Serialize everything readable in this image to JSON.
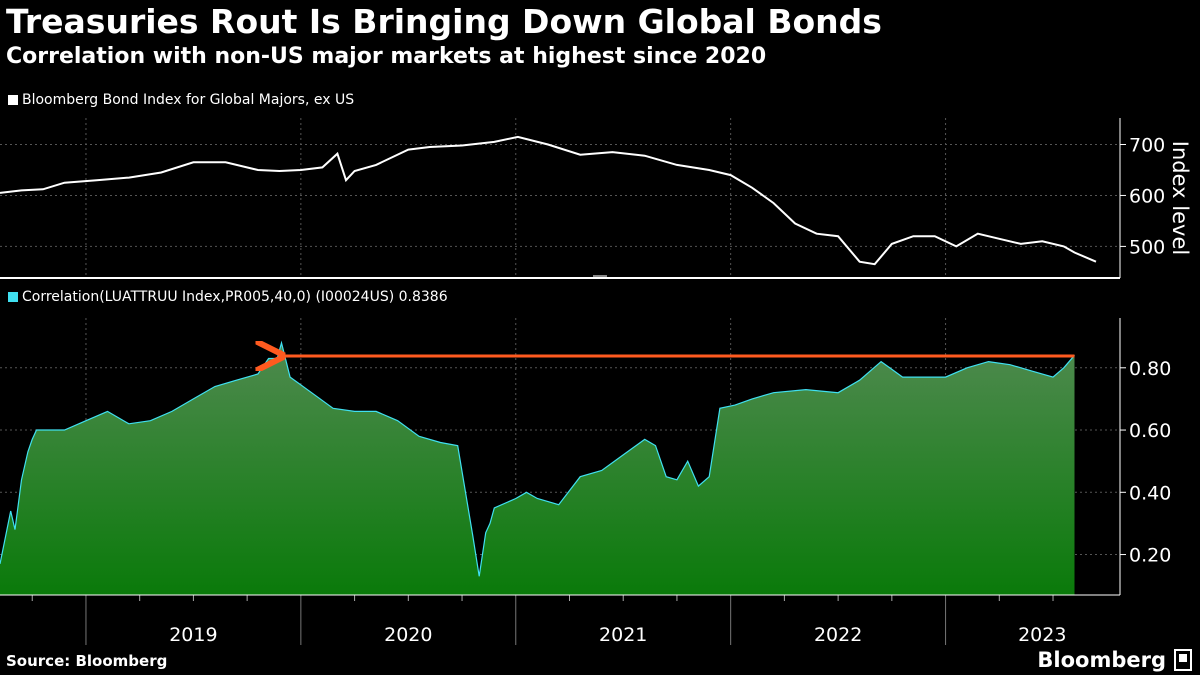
{
  "header": {
    "title": "Treasuries Rout Is Bringing Down Global Bonds",
    "subtitle": "Correlation with non-US major markets at highest since 2020"
  },
  "footer": {
    "source": "Source: Bloomberg",
    "brand": "Bloomberg"
  },
  "colors": {
    "background": "#000000",
    "index_line": "#ffffff",
    "correlation_line": "#40e0f0",
    "area_top": "#4f8a4f",
    "area_bottom": "#0a7a0a",
    "arrow": "#ff5a1f"
  },
  "chart_data": [
    {
      "type": "line",
      "legend": "Bloomberg Bond Index for Global Majors, ex US",
      "ylabel": "Index level",
      "yticks": [
        500,
        600,
        700
      ],
      "ylim": [
        438,
        752
      ],
      "xlim": [
        2018.55,
        2023.65
      ],
      "x_tick_labels": [
        "2019",
        "2020",
        "2021",
        "2022",
        "2023"
      ],
      "series": [
        {
          "x": [
            2018.55,
            2018.65,
            2018.75,
            2018.85,
            2019.0,
            2019.15,
            2019.3,
            2019.45,
            2019.6,
            2019.75,
            2019.85,
            2019.95,
            2020.05,
            2020.12,
            2020.16,
            2020.2,
            2020.3,
            2020.45,
            2020.55,
            2020.7,
            2020.85,
            2020.96,
            2021.1,
            2021.25,
            2021.4,
            2021.55,
            2021.7,
            2021.85,
            2021.95,
            2022.05,
            2022.15,
            2022.25,
            2022.35,
            2022.45,
            2022.55,
            2022.62,
            2022.7,
            2022.8,
            2022.9,
            2023.0,
            2023.1,
            2023.2,
            2023.3,
            2023.4,
            2023.5,
            2023.55,
            2023.65
          ],
          "y": [
            605,
            610,
            612,
            625,
            630,
            635,
            645,
            665,
            665,
            650,
            648,
            650,
            655,
            682,
            630,
            648,
            660,
            690,
            695,
            698,
            705,
            715,
            700,
            680,
            685,
            678,
            660,
            650,
            640,
            615,
            585,
            545,
            525,
            520,
            470,
            465,
            505,
            520,
            520,
            500,
            525,
            515,
            505,
            510,
            500,
            488,
            470
          ]
        }
      ]
    },
    {
      "type": "area",
      "legend": "Correlation(LUATTRUU Index,PR005,40,0) (I00024US) 0.8386",
      "yticks": [
        0.2,
        0.4,
        0.6,
        0.8
      ],
      "ylim": [
        0.07,
        0.96
      ],
      "xlim": [
        2018.55,
        2023.65
      ],
      "x_tick_labels": [
        "2019",
        "2020",
        "2021",
        "2022",
        "2023"
      ],
      "arrow": {
        "from_x": 2023.55,
        "to_x": 2019.85,
        "y": 0.838
      },
      "series": [
        {
          "x": [
            2018.55,
            2018.6,
            2018.62,
            2018.65,
            2018.68,
            2018.7,
            2018.72,
            2018.78,
            2018.85,
            2018.95,
            2019.05,
            2019.15,
            2019.25,
            2019.35,
            2019.45,
            2019.55,
            2019.65,
            2019.75,
            2019.8,
            2019.84,
            2019.86,
            2019.9,
            2020.0,
            2020.1,
            2020.2,
            2020.3,
            2020.4,
            2020.5,
            2020.6,
            2020.68,
            2020.75,
            2020.78,
            2020.81,
            2020.83,
            2020.85,
            2020.95,
            2021.0,
            2021.05,
            2021.15,
            2021.25,
            2021.35,
            2021.45,
            2021.55,
            2021.6,
            2021.65,
            2021.7,
            2021.75,
            2021.8,
            2021.85,
            2021.9,
            2021.97,
            2022.05,
            2022.15,
            2022.3,
            2022.45,
            2022.55,
            2022.65,
            2022.75,
            2022.85,
            2022.95,
            2023.05,
            2023.15,
            2023.25,
            2023.35,
            2023.45,
            2023.5,
            2023.55
          ],
          "y": [
            0.17,
            0.34,
            0.28,
            0.44,
            0.53,
            0.57,
            0.6,
            0.6,
            0.6,
            0.63,
            0.66,
            0.62,
            0.63,
            0.66,
            0.7,
            0.74,
            0.76,
            0.78,
            0.83,
            0.83,
            0.88,
            0.77,
            0.72,
            0.67,
            0.66,
            0.66,
            0.63,
            0.58,
            0.56,
            0.55,
            0.26,
            0.13,
            0.27,
            0.3,
            0.35,
            0.38,
            0.4,
            0.38,
            0.36,
            0.45,
            0.47,
            0.52,
            0.57,
            0.55,
            0.45,
            0.44,
            0.5,
            0.42,
            0.45,
            0.67,
            0.68,
            0.7,
            0.72,
            0.73,
            0.72,
            0.76,
            0.82,
            0.77,
            0.77,
            0.77,
            0.8,
            0.82,
            0.81,
            0.79,
            0.77,
            0.8,
            0.84
          ]
        }
      ]
    }
  ]
}
